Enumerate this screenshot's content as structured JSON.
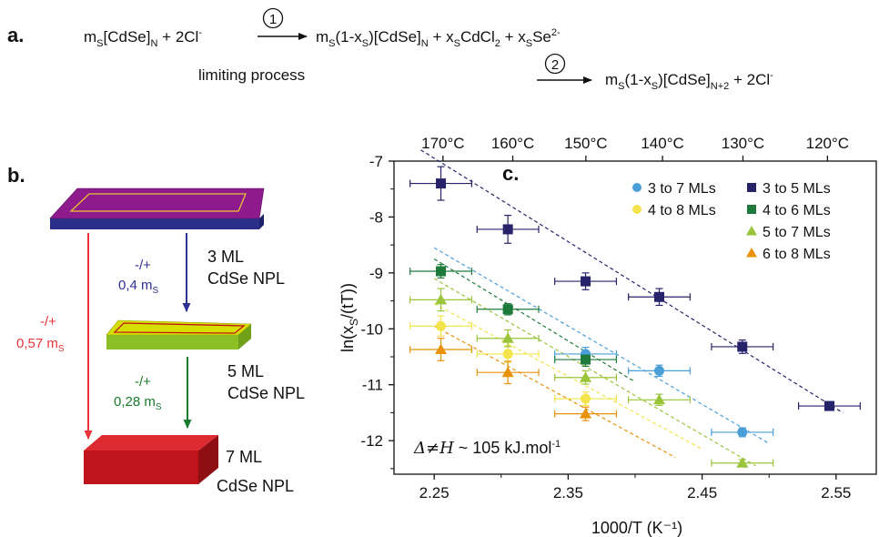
{
  "panel_a": {
    "label": "a.",
    "reactant": {
      "m": "m",
      "m_sub": "S",
      "formula": "[CdSe]",
      "formula_sub": "N",
      "plus": " + 2Cl",
      "plus_sup": "-"
    },
    "step1_number": "1",
    "step2_number": "2",
    "step1_products": {
      "p1": "m",
      "p1_sub": "S",
      "p2": "(1-x",
      "p2_sub": "S",
      "p3": ")[CdSe]",
      "p3_sub": "N",
      "p4": " + x",
      "p4_sub": "S",
      "p5": "CdCl",
      "p5_sub": "2",
      "p6": " + x",
      "p6_sub": "S",
      "p7": "Se",
      "p7_sup": "2-"
    },
    "limiting_text": "limiting process",
    "step2_products": {
      "p1": "m",
      "p1_sub": "S",
      "p2": "(1-x",
      "p2_sub": "S",
      "p3": ")[CdSe]",
      "p3_sub": "N+2",
      "p4": " + 2Cl",
      "p4_sup": "-"
    }
  },
  "panel_b": {
    "label": "b.",
    "colors": {
      "ml3_top": "#8e1a8e",
      "ml3_side": "#2b2e8a",
      "ml5_top": "#d6e000",
      "ml5_side": "#8cbf26",
      "ml7": "#c0141c",
      "arrow_blue": "#2e3192",
      "arrow_green": "#1a7a2e",
      "arrow_red": "#e8343a"
    },
    "ml3": {
      "line1": "3 ML",
      "line2": "CdSe NPL"
    },
    "ml5": {
      "line1": "5 ML",
      "line2": "CdSe NPL"
    },
    "ml7": {
      "line1": "7 ML",
      "line2": "CdSe NPL"
    },
    "arrow_3_5": {
      "sign": "-/+",
      "amount": "0,4 m",
      "amount_sub": "S"
    },
    "arrow_5_7": {
      "sign": "-/+",
      "amount": "0,28 m",
      "amount_sub": "S"
    },
    "arrow_3_7": {
      "sign": "-/+",
      "amount": "0,57 m",
      "amount_sub": "S"
    }
  },
  "chart_data": {
    "type": "scatter",
    "panel_label": "c.",
    "xlabel": "1000/T (K⁻¹)",
    "ylabel": "ln(x",
    "ylabel_sub": "S",
    "ylabel_end": "/(tT))",
    "xlim": [
      2.22,
      2.58
    ],
    "ylim": [
      -12.6,
      -7
    ],
    "x_ticks": [
      2.25,
      2.35,
      2.45,
      2.55
    ],
    "x_tick_labels": [
      "2.25",
      "2.35",
      "2.45",
      "2.55"
    ],
    "y_ticks": [
      -7,
      -8,
      -9,
      -10,
      -11,
      -12
    ],
    "y_tick_labels": [
      "-7",
      "-8",
      "-9",
      "-10",
      "-11",
      "-12"
    ],
    "top_axis_ticks_celsius": [
      170,
      160,
      150,
      140,
      130,
      120
    ],
    "top_axis_labels": [
      "170°C",
      "160°C",
      "150°C",
      "140°C",
      "130°C",
      "120°C"
    ],
    "annotation": {
      "prefix": "Δ≠H",
      "text": " ~ 105 kJ.mol",
      "sup": "-1"
    },
    "xerr": 0.023,
    "legend_position": "top-right",
    "series": [
      {
        "name": "3 to 7 MLs",
        "color": "#4a9fd8",
        "marker": "circle",
        "x": [
          2.363,
          2.418,
          2.48
        ],
        "y": [
          -10.45,
          -10.75,
          -11.85
        ],
        "yerr": [
          0.12,
          0.1,
          0.08
        ],
        "fit_x": [
          2.25,
          2.5
        ],
        "fit_y": [
          -8.55,
          -12.05
        ]
      },
      {
        "name": "3 to 5 MLs",
        "color": "#27236b",
        "marker": "square",
        "x": [
          2.255,
          2.305,
          2.363,
          2.418,
          2.48,
          2.545
        ],
        "y": [
          -7.4,
          -8.22,
          -9.15,
          -9.43,
          -10.32,
          -11.38
        ],
        "yerr": [
          0.3,
          0.25,
          0.15,
          0.15,
          0.12,
          0.05
        ],
        "fit_x": [
          2.24,
          2.555
        ],
        "fit_y": [
          -6.8,
          -11.5
        ]
      },
      {
        "name": "4 to 8 MLs",
        "color": "#f2e44a",
        "marker": "circle",
        "x": [
          2.255,
          2.305,
          2.363
        ],
        "y": [
          -9.95,
          -10.45,
          -11.25
        ],
        "yerr": [
          0.18,
          0.15,
          0.12
        ],
        "fit_x": [
          2.25,
          2.45
        ],
        "fit_y": [
          -9.55,
          -12.15
        ]
      },
      {
        "name": "4 to 6 MLs",
        "color": "#1e7a3a",
        "marker": "square",
        "x": [
          2.255,
          2.305,
          2.363
        ],
        "y": [
          -8.97,
          -9.65,
          -10.55
        ],
        "yerr": [
          0.12,
          0.1,
          0.12
        ],
        "fit_x": [
          2.25,
          2.4
        ],
        "fit_y": [
          -8.75,
          -10.95
        ]
      },
      {
        "name": "5 to 7 MLs",
        "color": "#9ac43a",
        "marker": "triangle",
        "x": [
          2.255,
          2.305,
          2.363,
          2.418,
          2.48
        ],
        "y": [
          -9.48,
          -10.17,
          -10.87,
          -11.27,
          -12.4
        ],
        "yerr": [
          0.2,
          0.15,
          0.12,
          0.1,
          0.06
        ],
        "fit_x": [
          2.25,
          2.49
        ],
        "fit_y": [
          -9.1,
          -12.45
        ]
      },
      {
        "name": "6 to 8 MLs",
        "color": "#e8920a",
        "marker": "triangle",
        "x": [
          2.255,
          2.305,
          2.363
        ],
        "y": [
          -10.37,
          -10.78,
          -11.52
        ],
        "yerr": [
          0.2,
          0.2,
          0.12
        ],
        "fit_x": [
          2.25,
          2.43
        ],
        "fit_y": [
          -9.95,
          -12.3
        ]
      }
    ]
  }
}
